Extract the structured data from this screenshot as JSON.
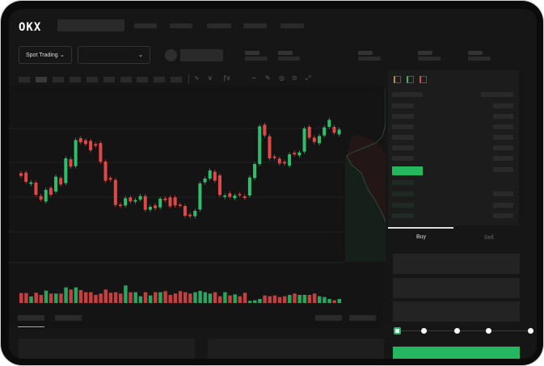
{
  "header": {
    "logo": "OKX",
    "market_selector": "Spot Trading",
    "market_chevron": "⌄",
    "pair_chevron": "⌄"
  },
  "toolbar": {
    "icons": [
      "line-indicator-icon",
      "candle-type-icon",
      "fx-indicator-icon",
      "draw-line-icon",
      "pencil-icon",
      "magnet-icon",
      "settings-icon",
      "fullscreen-icon"
    ],
    "icon_glyphs": [
      "∿",
      "∨",
      "ƒx",
      "∼",
      "✎",
      "◎",
      "⊙",
      "⤢"
    ]
  },
  "orderbook": {
    "view_icons": [
      "both-sides-icon",
      "bids-only-icon",
      "asks-only-icon"
    ],
    "highlight_color": "#25b660"
  },
  "trade": {
    "tabs": [
      {
        "label": "Buy"
      },
      {
        "label": "Sell"
      }
    ],
    "slider_value_percent": 0,
    "slider_stops": [
      0,
      25,
      50,
      75,
      100
    ]
  },
  "colors": {
    "up": "#2ebd6b",
    "down": "#e04848",
    "background": "#161616"
  },
  "chart_data": {
    "type": "candlestick",
    "candles": [
      [
        450,
        440,
        "d"
      ],
      [
        452,
        418,
        "d"
      ],
      [
        410,
        416,
        "u"
      ],
      [
        415,
        370,
        "d"
      ],
      [
        365,
        352,
        "d"
      ],
      [
        345,
        388,
        "u"
      ],
      [
        395,
        370,
        "d"
      ],
      [
        382,
        437,
        "u"
      ],
      [
        432,
        408,
        "d"
      ],
      [
        413,
        505,
        "u"
      ],
      [
        502,
        474,
        "d"
      ],
      [
        476,
        573,
        "u"
      ],
      [
        580,
        565,
        "d"
      ],
      [
        572,
        558,
        "d"
      ],
      [
        570,
        535,
        "d"
      ],
      [
        558,
        552,
        "d"
      ],
      [
        562,
        492,
        "d"
      ],
      [
        493,
        422,
        "d"
      ],
      [
        432,
        426,
        "d"
      ],
      [
        425,
        332,
        "d"
      ],
      [
        333,
        328,
        "d"
      ],
      [
        330,
        357,
        "u"
      ],
      [
        360,
        345,
        "d"
      ],
      [
        344,
        350,
        "u"
      ],
      [
        352,
        365,
        "u"
      ],
      [
        365,
        314,
        "d"
      ],
      [
        314,
        325,
        "u"
      ],
      [
        330,
        320,
        "d"
      ],
      [
        323,
        355,
        "u"
      ],
      [
        356,
        350,
        "d"
      ],
      [
        360,
        327,
        "d"
      ],
      [
        360,
        330,
        "d"
      ],
      [
        333,
        330,
        "d"
      ],
      [
        328,
        292,
        "d"
      ],
      [
        296,
        290,
        "d"
      ],
      [
        290,
        310,
        "u"
      ],
      [
        315,
        412,
        "u"
      ],
      [
        416,
        430,
        "u"
      ],
      [
        430,
        460,
        "u"
      ],
      [
        455,
        422,
        "d"
      ],
      [
        442,
        369,
        "d"
      ],
      [
        362,
        367,
        "u"
      ],
      [
        375,
        362,
        "d"
      ],
      [
        357,
        367,
        "u"
      ],
      [
        372,
        370,
        "d"
      ],
      [
        364,
        358,
        "d"
      ],
      [
        367,
        434,
        "u"
      ],
      [
        432,
        484,
        "u"
      ],
      [
        484,
        624,
        "u"
      ],
      [
        630,
        590,
        "d"
      ],
      [
        587,
        505,
        "d"
      ],
      [
        512,
        506,
        "d"
      ],
      [
        504,
        486,
        "d"
      ],
      [
        492,
        486,
        "d"
      ],
      [
        478,
        520,
        "u"
      ],
      [
        526,
        520,
        "d"
      ],
      [
        516,
        527,
        "u"
      ],
      [
        530,
        616,
        "u"
      ],
      [
        622,
        582,
        "d"
      ],
      [
        582,
        566,
        "d"
      ],
      [
        561,
        588,
        "u"
      ],
      [
        590,
        620,
        "u"
      ],
      [
        622,
        648,
        "u"
      ],
      [
        622,
        600,
        "d"
      ],
      [
        594,
        612,
        "u"
      ]
    ],
    "volume": [
      37,
      37,
      24,
      38,
      30,
      46,
      35,
      35,
      35,
      58,
      50,
      58,
      48,
      40,
      40,
      30,
      35,
      50,
      38,
      40,
      35,
      65,
      40,
      40,
      25,
      40,
      28,
      40,
      40,
      44,
      30,
      35,
      44,
      40,
      35,
      40,
      45,
      40,
      35,
      40,
      25,
      40,
      28,
      32,
      25,
      38,
      8,
      10,
      15,
      28,
      25,
      28,
      22,
      25,
      30,
      35,
      30,
      30,
      30,
      35,
      25,
      22,
      15,
      10,
      15
    ]
  }
}
